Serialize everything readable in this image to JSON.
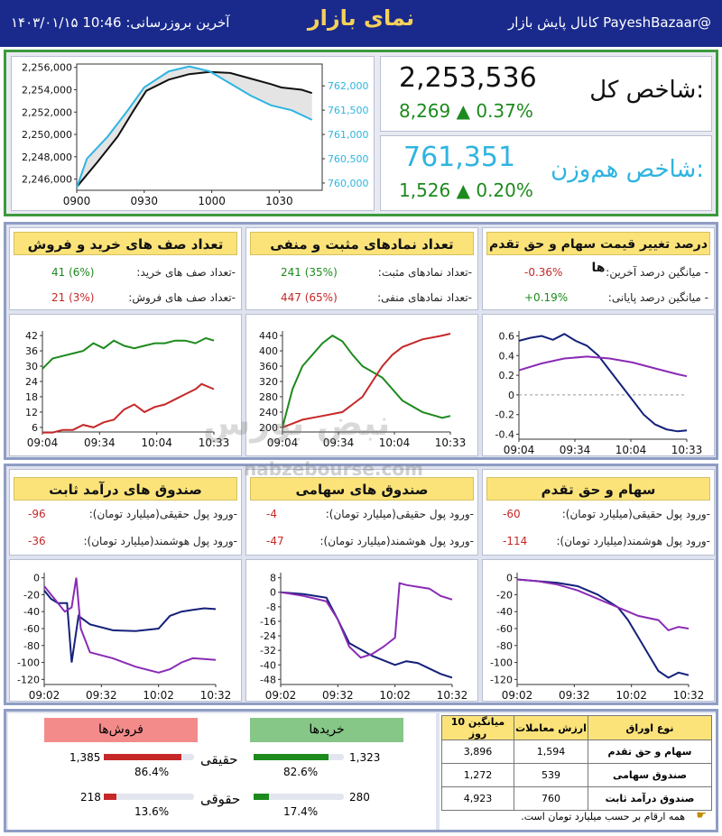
{
  "header": {
    "datetime": "آخرین بروزرسانی: 10:46 ۱۴۰۳/۰۱/۱۵",
    "title": "نمای بازار",
    "channel": "کانال پایش بازار  PayeshBazaar@"
  },
  "index": {
    "total_label": "شاخص کل:",
    "total_value": "2,253,536",
    "total_change": "8,269 ▲ 0.37%",
    "eq_label": "شاخص هم‌وزن:",
    "eq_value": "761,351",
    "eq_change": "1,526 ▲ 0.20%"
  },
  "colors": {
    "header": "#1a2a8c",
    "positive": "#1d8a1d",
    "negative": "#c62828",
    "eq_blue": "#2fb4e0",
    "purple": "#8a2bb5",
    "navy": "#14217a",
    "title_yellow": "#fbe37a"
  },
  "chart_data": [
    {
      "type": "line",
      "name": "index",
      "x_ticks": [
        "0900",
        "0930",
        "1000",
        "1030"
      ],
      "y_ticks_left": [
        "2,256,000",
        "2,254,000",
        "2,252,000",
        "2,250,000",
        "2,248,000",
        "2,246,000"
      ],
      "y_ticks_right": [
        "762,000",
        "761,500",
        "761,000",
        "760,500",
        "760,000"
      ],
      "series": [
        {
          "axis": "left",
          "color": "#111111",
          "points": [
            [
              0,
              2245.3
            ],
            [
              10,
              2247.5
            ],
            [
              20,
              2249.8
            ],
            [
              28,
              2252.2
            ],
            [
              34,
              2253.9
            ],
            [
              45,
              2254.9
            ],
            [
              55,
              2255.4
            ],
            [
              65,
              2255.6
            ],
            [
              75,
              2255.5
            ],
            [
              85,
              2255.0
            ],
            [
              95,
              2254.5
            ],
            [
              100,
              2254.2
            ],
            [
              110,
              2254.0
            ],
            [
              115,
              2253.7
            ]
          ]
        },
        {
          "axis": "right",
          "color": "#2fb4e0",
          "points": [
            [
              0,
              759.9
            ],
            [
              5,
              760.5
            ],
            [
              15,
              760.95
            ],
            [
              25,
              761.5
            ],
            [
              33,
              761.97
            ],
            [
              45,
              762.3
            ],
            [
              55,
              762.4
            ],
            [
              65,
              762.3
            ],
            [
              75,
              762.05
            ],
            [
              85,
              761.8
            ],
            [
              95,
              761.6
            ],
            [
              105,
              761.5
            ],
            [
              115,
              761.3
            ]
          ]
        }
      ]
    },
    {
      "type": "line",
      "name": "queues",
      "x_ticks": [
        "09:04",
        "09:34",
        "10:04",
        "10:33"
      ],
      "y_ticks": [
        "42",
        "36",
        "30",
        "24",
        "18",
        "12",
        "6"
      ],
      "series": [
        {
          "color": "#1d8a1d",
          "points": [
            [
              0,
              29
            ],
            [
              5,
              33
            ],
            [
              10,
              34
            ],
            [
              15,
              35
            ],
            [
              20,
              36
            ],
            [
              25,
              39
            ],
            [
              30,
              37
            ],
            [
              35,
              40
            ],
            [
              40,
              38
            ],
            [
              45,
              37
            ],
            [
              50,
              38
            ],
            [
              55,
              39
            ],
            [
              60,
              39
            ],
            [
              65,
              40
            ],
            [
              70,
              40
            ],
            [
              75,
              39
            ],
            [
              80,
              41
            ],
            [
              84,
              40
            ]
          ]
        },
        {
          "color": "#c62828",
          "points": [
            [
              0,
              4
            ],
            [
              5,
              4
            ],
            [
              10,
              5
            ],
            [
              15,
              5
            ],
            [
              20,
              7
            ],
            [
              25,
              6
            ],
            [
              30,
              8
            ],
            [
              35,
              9
            ],
            [
              40,
              13
            ],
            [
              45,
              15
            ],
            [
              50,
              12
            ],
            [
              55,
              14
            ],
            [
              60,
              15
            ],
            [
              65,
              17
            ],
            [
              70,
              19
            ],
            [
              75,
              21
            ],
            [
              78,
              23
            ],
            [
              84,
              21
            ]
          ]
        }
      ]
    },
    {
      "type": "line",
      "name": "symbols",
      "x_ticks": [
        "09:04",
        "09:34",
        "10:04",
        "10:33"
      ],
      "y_ticks": [
        "440",
        "400",
        "360",
        "320",
        "280",
        "240",
        "200"
      ],
      "series": [
        {
          "color": "#1d8a1d",
          "points": [
            [
              0,
              200
            ],
            [
              5,
              300
            ],
            [
              10,
              360
            ],
            [
              20,
              420
            ],
            [
              25,
              440
            ],
            [
              30,
              425
            ],
            [
              35,
              390
            ],
            [
              40,
              360
            ],
            [
              50,
              330
            ],
            [
              55,
              300
            ],
            [
              60,
              270
            ],
            [
              70,
              240
            ],
            [
              80,
              225
            ],
            [
              84,
              230
            ]
          ]
        },
        {
          "color": "#c62828",
          "points": [
            [
              0,
              200
            ],
            [
              5,
              210
            ],
            [
              10,
              220
            ],
            [
              20,
              230
            ],
            [
              30,
              240
            ],
            [
              35,
              260
            ],
            [
              40,
              280
            ],
            [
              45,
              320
            ],
            [
              50,
              360
            ],
            [
              55,
              390
            ],
            [
              60,
              410
            ],
            [
              70,
              430
            ],
            [
              80,
              440
            ],
            [
              84,
              445
            ]
          ]
        }
      ]
    },
    {
      "type": "line",
      "name": "price_change",
      "x_ticks": [
        "09:04",
        "09:34",
        "10:04",
        "10:33"
      ],
      "y_ticks": [
        "0.6",
        "0.4",
        "0.2",
        "0",
        "-0.2",
        "-0.4"
      ],
      "series": [
        {
          "color": "#14217a",
          "points": [
            [
              0,
              0.55
            ],
            [
              5,
              0.58
            ],
            [
              10,
              0.6
            ],
            [
              15,
              0.56
            ],
            [
              20,
              0.62
            ],
            [
              25,
              0.55
            ],
            [
              30,
              0.5
            ],
            [
              35,
              0.4
            ],
            [
              40,
              0.25
            ],
            [
              45,
              0.1
            ],
            [
              50,
              -0.05
            ],
            [
              55,
              -0.2
            ],
            [
              60,
              -0.3
            ],
            [
              65,
              -0.35
            ],
            [
              70,
              -0.37
            ],
            [
              74,
              -0.36
            ]
          ]
        },
        {
          "color": "#8a2bb5",
          "points": [
            [
              0,
              0.25
            ],
            [
              10,
              0.32
            ],
            [
              20,
              0.37
            ],
            [
              30,
              0.39
            ],
            [
              40,
              0.37
            ],
            [
              50,
              0.33
            ],
            [
              60,
              0.27
            ],
            [
              70,
              0.21
            ],
            [
              74,
              0.19
            ]
          ]
        }
      ]
    },
    {
      "type": "line",
      "name": "fixed_income",
      "x_ticks": [
        "09:02",
        "09:32",
        "10:02",
        "10:32"
      ],
      "y_ticks": [
        "0",
        "-20",
        "-40",
        "-60",
        "-80",
        "-100",
        "-120"
      ],
      "series": [
        {
          "color": "#14217a",
          "points": [
            [
              0,
              -15
            ],
            [
              3,
              -25
            ],
            [
              6,
              -30
            ],
            [
              10,
              -30
            ],
            [
              12,
              -100
            ],
            [
              15,
              -45
            ],
            [
              20,
              -55
            ],
            [
              30,
              -62
            ],
            [
              40,
              -63
            ],
            [
              50,
              -60
            ],
            [
              55,
              -45
            ],
            [
              60,
              -40
            ],
            [
              65,
              -38
            ],
            [
              70,
              -36
            ],
            [
              75,
              -37
            ]
          ]
        },
        {
          "color": "#8a2bb5",
          "points": [
            [
              0,
              -10
            ],
            [
              3,
              -20
            ],
            [
              6,
              -30
            ],
            [
              9,
              -40
            ],
            [
              12,
              -35
            ],
            [
              14,
              0
            ],
            [
              16,
              -60
            ],
            [
              20,
              -88
            ],
            [
              30,
              -95
            ],
            [
              40,
              -105
            ],
            [
              50,
              -112
            ],
            [
              55,
              -108
            ],
            [
              60,
              -100
            ],
            [
              65,
              -95
            ],
            [
              70,
              -96
            ],
            [
              75,
              -97
            ]
          ]
        }
      ]
    },
    {
      "type": "line",
      "name": "equity_fund",
      "x_ticks": [
        "09:02",
        "09:32",
        "10:02",
        "10:32"
      ],
      "y_ticks": [
        "8",
        "0",
        "-8",
        "-16",
        "-24",
        "-32",
        "-40",
        "-48"
      ],
      "series": [
        {
          "color": "#14217a",
          "points": [
            [
              0,
              0
            ],
            [
              10,
              -1
            ],
            [
              20,
              -3
            ],
            [
              25,
              -15
            ],
            [
              30,
              -28
            ],
            [
              40,
              -35
            ],
            [
              50,
              -40
            ],
            [
              55,
              -38
            ],
            [
              60,
              -39
            ],
            [
              65,
              -42
            ],
            [
              70,
              -45
            ],
            [
              75,
              -47
            ]
          ]
        },
        {
          "color": "#8a2bb5",
          "points": [
            [
              0,
              0
            ],
            [
              10,
              -2
            ],
            [
              20,
              -5
            ],
            [
              25,
              -15
            ],
            [
              30,
              -30
            ],
            [
              35,
              -36
            ],
            [
              40,
              -34
            ],
            [
              45,
              -30
            ],
            [
              50,
              -25
            ],
            [
              52,
              5
            ],
            [
              55,
              4
            ],
            [
              60,
              3
            ],
            [
              65,
              2
            ],
            [
              70,
              -2
            ],
            [
              75,
              -4
            ]
          ]
        }
      ]
    },
    {
      "type": "line",
      "name": "stocks",
      "x_ticks": [
        "09:02",
        "09:32",
        "10:02",
        "10:32"
      ],
      "y_ticks": [
        "0",
        "-20",
        "-40",
        "-60",
        "-80",
        "-100",
        "-120"
      ],
      "series": [
        {
          "color": "#14217a",
          "points": [
            [
              0,
              -2
            ],
            [
              10,
              -4
            ],
            [
              20,
              -6
            ],
            [
              30,
              -10
            ],
            [
              40,
              -20
            ],
            [
              50,
              -35
            ],
            [
              55,
              -50
            ],
            [
              60,
              -70
            ],
            [
              65,
              -90
            ],
            [
              70,
              -110
            ],
            [
              75,
              -118
            ],
            [
              80,
              -112
            ],
            [
              85,
              -115
            ]
          ]
        },
        {
          "color": "#8a2bb5",
          "points": [
            [
              0,
              -2
            ],
            [
              10,
              -4
            ],
            [
              20,
              -8
            ],
            [
              30,
              -15
            ],
            [
              40,
              -25
            ],
            [
              50,
              -35
            ],
            [
              55,
              -40
            ],
            [
              60,
              -45
            ],
            [
              70,
              -50
            ],
            [
              75,
              -62
            ],
            [
              80,
              -58
            ],
            [
              85,
              -60
            ]
          ]
        }
      ]
    }
  ],
  "panels": {
    "queues": {
      "title": "تعداد صف های خرید و فروش",
      "r1_label": "-تعداد صف های خرید:",
      "r1_val": "41  (6%)",
      "r2_label": "-تعداد صف های فروش:",
      "r2_val": "21  (3%)"
    },
    "symbols": {
      "title": "تعداد نمادهای مثبت و منفی",
      "r1_label": "-تعداد نمادهای مثبت:",
      "r1_val": "241  (35%)",
      "r2_label": "-تعداد نمادهای منفی:",
      "r2_val": "447  (65%)"
    },
    "price": {
      "title": "درصد تغییر قیمت سهام و حق تقدم ها",
      "r1_label": "- میانگین درصد آخرین:",
      "r1_val": "-0.36%",
      "r2_label": "- میانگین درصد پایانی:",
      "r2_val": "+0.19%"
    },
    "fixed": {
      "title": "صندوق های درآمد ثابت",
      "r1_label": "-ورود پول حقیقی(میلیارد تومان):",
      "r1_val": "-96",
      "r2_label": "-ورود پول هوشمند(میلیارد تومان):",
      "r2_val": "-36"
    },
    "equity": {
      "title": "صندوق های سهامی",
      "r1_label": "-ورود پول حقیقی(میلیارد تومان):",
      "r1_val": "-4",
      "r2_label": "-ورود پول هوشمند(میلیارد تومان):",
      "r2_val": "-47"
    },
    "stocks": {
      "title": "سهام و حق تقدم",
      "r1_label": "-ورود پول حقیقی(میلیارد تومان):",
      "r1_val": "-60",
      "r2_label": "-ورود پول هوشمند(میلیارد تومان):",
      "r2_val": "-114"
    }
  },
  "watermark": {
    "brand": "نبض بورس",
    "url": "nabzebourse.com"
  },
  "trades": {
    "sells_title": "فروش‌ها",
    "buys_title": "خریدها",
    "real_label": "حقیقی",
    "legal_label": "حقوقی",
    "sell_real": "1,385",
    "sell_real_pct": "86.4%",
    "sell_real_frac": 0.864,
    "sell_legal": "218",
    "sell_legal_pct": "13.6%",
    "sell_legal_frac": 0.136,
    "buy_real": "1,323",
    "buy_real_pct": "82.6%",
    "buy_real_frac": 0.826,
    "buy_legal": "280",
    "buy_legal_pct": "17.4%",
    "buy_legal_frac": 0.174
  },
  "table": {
    "headers": [
      "نوع اوراق",
      "ارزش معاملات",
      "میانگین 10 روز"
    ],
    "rows": [
      [
        "سهام و حق تقدم",
        "1,594",
        "3,896"
      ],
      [
        "صندوق سهامی",
        "539",
        "1,272"
      ],
      [
        "صندوق درآمد ثابت",
        "760",
        "4,923"
      ]
    ],
    "note": "همه ارقام بر حسب میلیارد تومان است."
  }
}
